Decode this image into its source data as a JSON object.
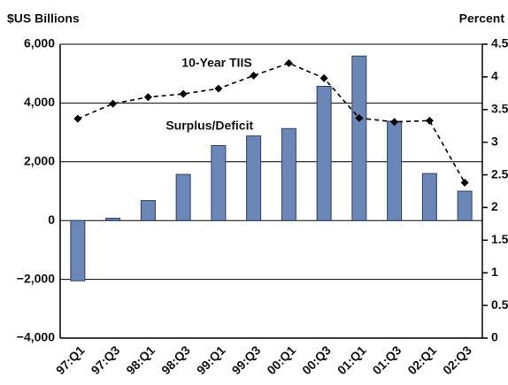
{
  "chart_data": {
    "type": "bar-line",
    "y_label": "$US Billions",
    "y2_label": "Percent",
    "categories": [
      "97:Q1",
      "97:Q3",
      "98:Q1",
      "98:Q3",
      "99:Q1",
      "99:Q3",
      "00:Q1",
      "00:Q3",
      "01:Q1",
      "01:Q3",
      "02:Q1",
      "02:Q3"
    ],
    "series": [
      {
        "name": "Surplus/Deficit",
        "type": "bar",
        "color": "#6b87b8",
        "values": [
          -2050,
          80,
          680,
          1570,
          2550,
          2880,
          3130,
          4570,
          5600,
          3380,
          1600,
          1000
        ]
      },
      {
        "name": "10-Year TIIS",
        "type": "line",
        "axis": "y2",
        "color": "#000000",
        "values": [
          3.36,
          3.59,
          3.69,
          3.74,
          3.82,
          4.02,
          4.21,
          3.98,
          3.37,
          3.31,
          3.33,
          2.38
        ]
      }
    ],
    "ylim": [
      -4000,
      6000
    ],
    "yticks": [
      {
        "value": -4000,
        "label": "−4,000"
      },
      {
        "value": -2000,
        "label": "−2,000"
      },
      0,
      {
        "value": 2000,
        "label": "2,000"
      },
      {
        "value": 4000,
        "label": "4,000"
      },
      {
        "value": 6000,
        "label": "6,000"
      }
    ],
    "y2lim": [
      0,
      4.5
    ],
    "y2ticks": [
      0,
      0.5,
      1,
      1.5,
      2,
      2.5,
      3,
      3.5,
      4,
      4.5
    ],
    "grid": true
  }
}
